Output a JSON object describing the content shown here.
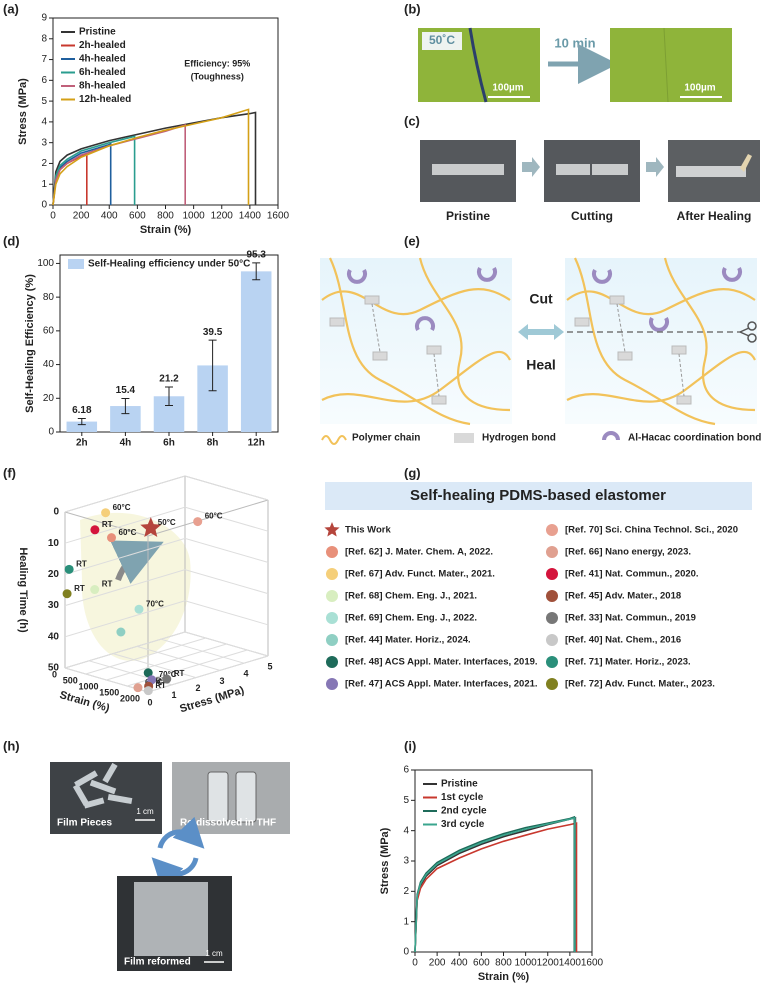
{
  "chart_data": [
    {
      "type": "line",
      "panel_label": "(a)",
      "xlabel": "Strain (%)",
      "ylabel": "Stress (MPa)",
      "xlim": [
        0,
        1600
      ],
      "xticks": [
        0,
        200,
        400,
        600,
        800,
        1000,
        1200,
        1400,
        1600
      ],
      "ylim": [
        0,
        9
      ],
      "yticks": [
        0,
        1,
        2,
        3,
        4,
        5,
        6,
        7,
        8,
        9
      ],
      "legend": "upper left",
      "annotations": [
        "Efficiency: 95%",
        "(Toughness)"
      ],
      "series": [
        {
          "name": "Pristine",
          "color": "#333333",
          "x": [
            0,
            20,
            50,
            100,
            200,
            400,
            600,
            800,
            1000,
            1200,
            1400,
            1440,
            1440
          ],
          "values": [
            0,
            1.6,
            2.1,
            2.4,
            2.7,
            3.1,
            3.4,
            3.7,
            3.95,
            4.2,
            4.4,
            4.45,
            0
          ]
        },
        {
          "name": "2h-healed",
          "color": "#c8382e",
          "x": [
            0,
            20,
            50,
            100,
            200,
            240,
            240
          ],
          "values": [
            0,
            1.2,
            1.7,
            2.0,
            2.35,
            2.45,
            0
          ]
        },
        {
          "name": "4h-healed",
          "color": "#1f5f9e",
          "x": [
            0,
            20,
            50,
            100,
            200,
            400,
            410,
            410
          ],
          "values": [
            0,
            1.3,
            1.8,
            2.1,
            2.5,
            2.9,
            2.95,
            0
          ]
        },
        {
          "name": "6h-healed",
          "color": "#2a9d8f",
          "x": [
            0,
            20,
            50,
            100,
            200,
            400,
            580,
            580
          ],
          "values": [
            0,
            1.4,
            1.9,
            2.2,
            2.6,
            3.0,
            3.3,
            0
          ]
        },
        {
          "name": "8h-healed",
          "color": "#c0607a",
          "x": [
            0,
            20,
            50,
            100,
            200,
            400,
            600,
            800,
            940,
            940
          ],
          "values": [
            0,
            1.2,
            1.7,
            2.0,
            2.4,
            2.85,
            3.2,
            3.55,
            3.85,
            0
          ]
        },
        {
          "name": "12h-healed",
          "color": "#d4a017",
          "x": [
            0,
            20,
            50,
            100,
            200,
            400,
            600,
            800,
            1000,
            1200,
            1390,
            1390
          ],
          "values": [
            0,
            1.0,
            1.5,
            1.85,
            2.3,
            2.85,
            3.25,
            3.6,
            3.9,
            4.2,
            4.6,
            0
          ]
        }
      ]
    },
    {
      "type": "bar",
      "panel_label": "(d)",
      "ylabel": "Self-Healing Efficiency (%)",
      "categories": [
        "2h",
        "4h",
        "6h",
        "8h",
        "12h"
      ],
      "ylim": [
        0,
        105
      ],
      "yticks": [
        0,
        20,
        40,
        60,
        80,
        100
      ],
      "legend": "upper left",
      "series": [
        {
          "name": "Self-Healing efficiency under 50°C",
          "color": "#b9d3f2",
          "values": [
            6.18,
            15.4,
            21.2,
            39.5,
            95.3
          ],
          "errors": [
            1.8,
            4.5,
            5.5,
            15,
            5
          ]
        }
      ]
    },
    {
      "type": "scatter3d",
      "panel_label": "(f)",
      "xlabel": "Strain (%)",
      "ylabel": "Stress (MPa)",
      "zlabel": "Healing Time (h)",
      "xlim": [
        0,
        2000
      ],
      "xticks": [
        0,
        500,
        1000,
        1500,
        2000
      ],
      "ylim": [
        0,
        5
      ],
      "yticks": [
        0,
        1,
        2,
        3,
        4,
        5
      ],
      "zlim": [
        0,
        50
      ],
      "zticks": [
        0,
        10,
        20,
        30,
        40,
        50
      ],
      "points": [
        {
          "x": 1200,
          "y": 1.5,
          "z": 4,
          "label": "50°C",
          "color": "#b5453c",
          "marker": "star"
        },
        {
          "x": 400,
          "y": 1,
          "z": 1,
          "label": "60°C",
          "color": "#f5cf7a"
        },
        {
          "x": 200,
          "y": 0.9,
          "z": 7,
          "label": "RT",
          "color": "#d4143c"
        },
        {
          "x": 600,
          "y": 0.9,
          "z": 8,
          "label": "60°C",
          "color": "#e8907a"
        },
        {
          "x": 1000,
          "y": 3.8,
          "z": 8,
          "label": "60°C",
          "color": "#e8a090"
        },
        {
          "x": 100,
          "y": 0,
          "z": 18,
          "label": "RT",
          "color": "#2a8f7a"
        },
        {
          "x": 600,
          "y": 0.2,
          "z": 23,
          "label": "RT",
          "color": "#d8eec0"
        },
        {
          "x": 50,
          "y": 0,
          "z": 26,
          "label": "RT",
          "color": "#808020"
        },
        {
          "x": 800,
          "y": 1.7,
          "z": 32,
          "label": "70°C",
          "color": "#a9e0d5"
        },
        {
          "x": 1000,
          "y": 0.6,
          "z": 36,
          "color": "#8fcfc3"
        },
        {
          "x": 1600,
          "y": 0.7,
          "z": 47,
          "color": "#1e6b5a"
        },
        {
          "x": 1700,
          "y": 0.1,
          "z": 50,
          "label": "60°C",
          "color": "#e0a090"
        },
        {
          "x": 1800,
          "y": 0.5,
          "z": 48,
          "label": "70°C",
          "color": "#8677b5"
        },
        {
          "x": 1900,
          "y": 0.2,
          "z": 49,
          "label": "RT",
          "color": "#a0503a"
        },
        {
          "x": 1950,
          "y": 0.1,
          "z": 50,
          "label": "RT",
          "color": "#c8c8c8"
        },
        {
          "x": 1700,
          "y": 1.3,
          "z": 50,
          "label": "RT",
          "color": "#777777"
        }
      ]
    },
    {
      "type": "line",
      "panel_label": "(i)",
      "xlabel": "Strain (%)",
      "ylabel": "Stress (MPa)",
      "xlim": [
        0,
        1600
      ],
      "xticks": [
        0,
        200,
        400,
        600,
        800,
        1000,
        1200,
        1400,
        1600
      ],
      "ylim": [
        0,
        6
      ],
      "yticks": [
        0,
        1,
        2,
        3,
        4,
        5,
        6
      ],
      "legend": "upper left",
      "series": [
        {
          "name": "Pristine",
          "color": "#333333",
          "x": [
            0,
            20,
            50,
            100,
            200,
            400,
            600,
            800,
            1000,
            1200,
            1400,
            1450,
            1450
          ],
          "values": [
            0,
            1.8,
            2.2,
            2.5,
            2.85,
            3.25,
            3.55,
            3.8,
            4.0,
            4.2,
            4.38,
            4.42,
            0
          ]
        },
        {
          "name": "1st cycle",
          "color": "#c8382e",
          "x": [
            0,
            20,
            50,
            100,
            200,
            400,
            600,
            800,
            1000,
            1200,
            1400,
            1460,
            1460
          ],
          "values": [
            0,
            1.7,
            2.1,
            2.4,
            2.75,
            3.1,
            3.4,
            3.65,
            3.85,
            4.05,
            4.2,
            4.25,
            0
          ]
        },
        {
          "name": "2nd cycle",
          "color": "#1e6b5a",
          "x": [
            0,
            20,
            50,
            100,
            200,
            400,
            600,
            800,
            1000,
            1200,
            1400,
            1440,
            1440
          ],
          "values": [
            0,
            1.9,
            2.3,
            2.6,
            2.95,
            3.35,
            3.65,
            3.9,
            4.1,
            4.25,
            4.4,
            4.45,
            0
          ]
        },
        {
          "name": "3rd cycle",
          "color": "#3aa58e",
          "x": [
            0,
            20,
            50,
            100,
            200,
            400,
            600,
            800,
            1000,
            1200,
            1400,
            1445,
            1445
          ],
          "values": [
            0,
            1.85,
            2.25,
            2.55,
            2.9,
            3.3,
            3.6,
            3.85,
            4.05,
            4.22,
            4.38,
            4.42,
            0
          ]
        }
      ]
    }
  ],
  "panel_b": {
    "panel_label": "(b)",
    "temperature": "50˚C",
    "time": "10 min",
    "scale_bars": [
      "100µm",
      "100µm"
    ]
  },
  "panel_c": {
    "panel_label": "(c)",
    "steps": [
      "Pristine",
      "Cutting",
      "After Healing"
    ]
  },
  "panel_e": {
    "panel_label": "(e)",
    "actions": [
      "Cut",
      "Heal"
    ],
    "legend": [
      "Polymer chain",
      "Hydrogen bond",
      "Al-Hacac coordination bond"
    ]
  },
  "panel_g": {
    "panel_label": "(g)",
    "title": "Self-healing PDMS-based elastomer",
    "entries": [
      {
        "label": "This Work",
        "color": "#b5453c",
        "marker": "star"
      },
      {
        "label": "[Ref. 62] J. Mater. Chem. A, 2022.",
        "color": "#e8907a"
      },
      {
        "label": "[Ref. 67] Adv. Funct. Mater., 2021.",
        "color": "#f5cf7a"
      },
      {
        "label": "[Ref. 68] Chem. Eng. J., 2021.",
        "color": "#d8eec0"
      },
      {
        "label": "[Ref. 69] Chem. Eng. J., 2022.",
        "color": "#a9e0d5"
      },
      {
        "label": "[Ref. 44] Mater. Horiz., 2024.",
        "color": "#8fcfc3"
      },
      {
        "label": "[Ref. 48] ACS Appl. Mater. Interfaces, 2019.",
        "color": "#1e6b5a"
      },
      {
        "label": "[Ref. 47] ACS Appl. Mater. Interfaces, 2021.",
        "color": "#8677b5"
      },
      {
        "label": "[Ref. 70] Sci. China Technol. Sci., 2020",
        "color": "#e8a090"
      },
      {
        "label": "[Ref. 66] Nano energy, 2023.",
        "color": "#e0a090"
      },
      {
        "label": "[Ref. 41] Nat. Commun., 2020.",
        "color": "#d4143c"
      },
      {
        "label": "[Ref. 45] Adv. Mater., 2018",
        "color": "#a0503a"
      },
      {
        "label": "[Ref. 33] Nat. Commun., 2019",
        "color": "#777777"
      },
      {
        "label": "[Ref. 40] Nat. Chem., 2016",
        "color": "#c8c8c8"
      },
      {
        "label": "[Ref. 71] Mater. Horiz., 2023.",
        "color": "#2a8f7a"
      },
      {
        "label": "[Ref. 72] Adv. Funct. Mater., 2023.",
        "color": "#808020"
      }
    ]
  },
  "panel_h": {
    "panel_label": "(h)",
    "labels": [
      "Film Pieces",
      "Re-dissolved in THF",
      "Film reformed"
    ],
    "scale_bars": [
      "1 cm",
      "1 cm"
    ]
  }
}
